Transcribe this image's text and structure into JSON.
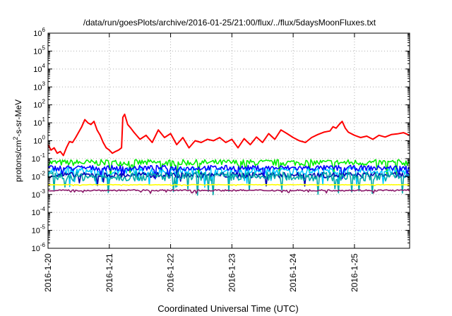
{
  "chart_data": {
    "type": "line",
    "title": "/data/run/goesPlots/archive/2016-01-25/21:00/flux/../flux/5daysMoonFluxes.txt",
    "xlabel": "Coordinated Universal Time (UTC)",
    "ylabel_parts": {
      "base": "protons/cm",
      "sup": "2",
      "rest": "-s-sr-MeV"
    },
    "x_ticks": [
      "2016-1-20",
      "2016-1-21",
      "2016-1-22",
      "2016-1-23",
      "2016-1-24",
      "2016-1-25"
    ],
    "xlim": [
      0,
      5.9
    ],
    "y_scale": "log",
    "ylim_exp": [
      -6,
      6
    ],
    "y_ticks_exp": [
      "-6",
      "-5",
      "-4",
      "-3",
      "-2",
      "-1",
      "0",
      "1",
      "2",
      "3",
      "4",
      "5",
      "6"
    ],
    "y_tick_base": "10",
    "grid": true,
    "legend": "none",
    "series": [
      {
        "color": "#ff0000",
        "x": [
          0,
          0.05,
          0.1,
          0.15,
          0.2,
          0.25,
          0.3,
          0.35,
          0.4,
          0.45,
          0.5,
          0.55,
          0.6,
          0.65,
          0.7,
          0.75,
          0.8,
          0.85,
          0.9,
          0.95,
          1.0,
          1.05,
          1.1,
          1.15,
          1.2,
          1.22,
          1.25,
          1.3,
          1.35,
          1.4,
          1.5,
          1.6,
          1.7,
          1.8,
          1.9,
          2.0,
          2.1,
          2.2,
          2.3,
          2.4,
          2.5,
          2.6,
          2.7,
          2.8,
          2.9,
          3.0,
          3.1,
          3.2,
          3.3,
          3.4,
          3.5,
          3.6,
          3.7,
          3.8,
          3.9,
          4.0,
          4.1,
          4.2,
          4.3,
          4.4,
          4.5,
          4.6,
          4.65,
          4.7,
          4.75,
          4.8,
          4.85,
          4.9,
          5.0,
          5.1,
          5.2,
          5.3,
          5.4,
          5.5,
          5.6,
          5.7,
          5.8,
          5.9
        ],
        "y": [
          0.6,
          0.3,
          0.4,
          0.2,
          0.25,
          0.15,
          0.4,
          0.9,
          0.8,
          1.5,
          3,
          6,
          15,
          10,
          8,
          12,
          4,
          2,
          0.8,
          0.4,
          0.3,
          0.2,
          0.25,
          0.3,
          0.4,
          20,
          30,
          8,
          5,
          3,
          1.2,
          2,
          0.8,
          4,
          1.5,
          2.5,
          0.6,
          1.5,
          0.4,
          1,
          0.8,
          1.2,
          1,
          1.5,
          0.8,
          1.2,
          0.4,
          1.3,
          0.6,
          1.6,
          0.8,
          2.5,
          1.2,
          4,
          2.5,
          1.5,
          1,
          0.8,
          1.5,
          2.2,
          3,
          3.5,
          6,
          5,
          8,
          12,
          5,
          3,
          2,
          1.5,
          1.8,
          1.2,
          2,
          1.6,
          2.2,
          2.4,
          2.8,
          2
        ]
      },
      {
        "color": "#00ee00",
        "base": 0.06,
        "spread": 0.35
      },
      {
        "color": "#00c8ff",
        "base": 0.02,
        "spread": 0.45
      },
      {
        "color": "#0000ff",
        "base": 0.03,
        "spread": 0.3
      },
      {
        "color": "#0000b0",
        "base": 0.012,
        "spread": 0.3
      },
      {
        "color": "#00aaaa",
        "base": 0.01,
        "spread": 0.5
      },
      {
        "color": "#ffff00",
        "base": 0.0035,
        "spread": 0.03
      },
      {
        "color": "#8b1a6b",
        "base": 0.0017,
        "spread": 0.08
      }
    ]
  }
}
